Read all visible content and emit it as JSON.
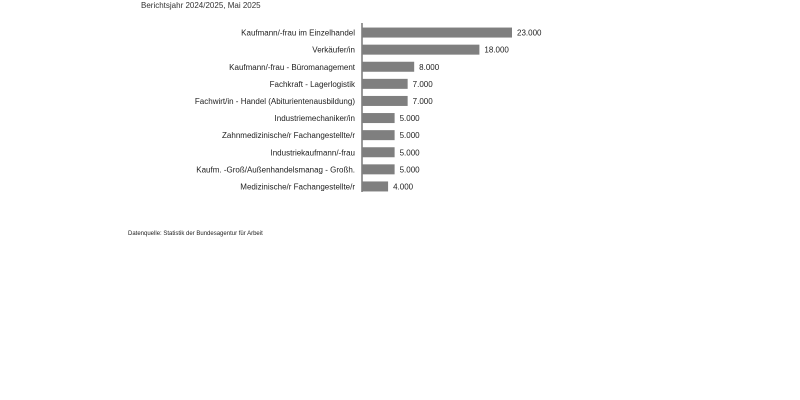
{
  "header": {
    "subtitle": "Berichtsjahr 2024/2025, Mai 2025"
  },
  "chart_data": {
    "type": "bar",
    "orientation": "horizontal",
    "categories": [
      "Kaufmann/-frau im Einzelhandel",
      "Verkäufer/in",
      "Kaufmann/-frau - Büromanagement",
      "Fachkraft - Lagerlogistik",
      "Fachwirt/in - Handel (Abiturientenausbildung)",
      "Industriemechaniker/in",
      "Zahnmedizinische/r Fachangestellte/r",
      "Industriekaufmann/-frau",
      "Kaufm. -Groß/Außenhandelsmanag - Großh.",
      "Medizinische/r Fachangestellte/r"
    ],
    "values": [
      23000,
      18000,
      8000,
      7000,
      7000,
      5000,
      5000,
      5000,
      5000,
      4000
    ],
    "value_labels": [
      "23.000",
      "18.000",
      "8.000",
      "7.000",
      "7.000",
      "5.000",
      "5.000",
      "5.000",
      "5.000",
      "4.000"
    ],
    "bar_color": "#7f7f7f",
    "grid": false,
    "legend": "none"
  },
  "footer": {
    "source": "Datenquelle: Statistik der Bundesagentur für Arbeit"
  }
}
